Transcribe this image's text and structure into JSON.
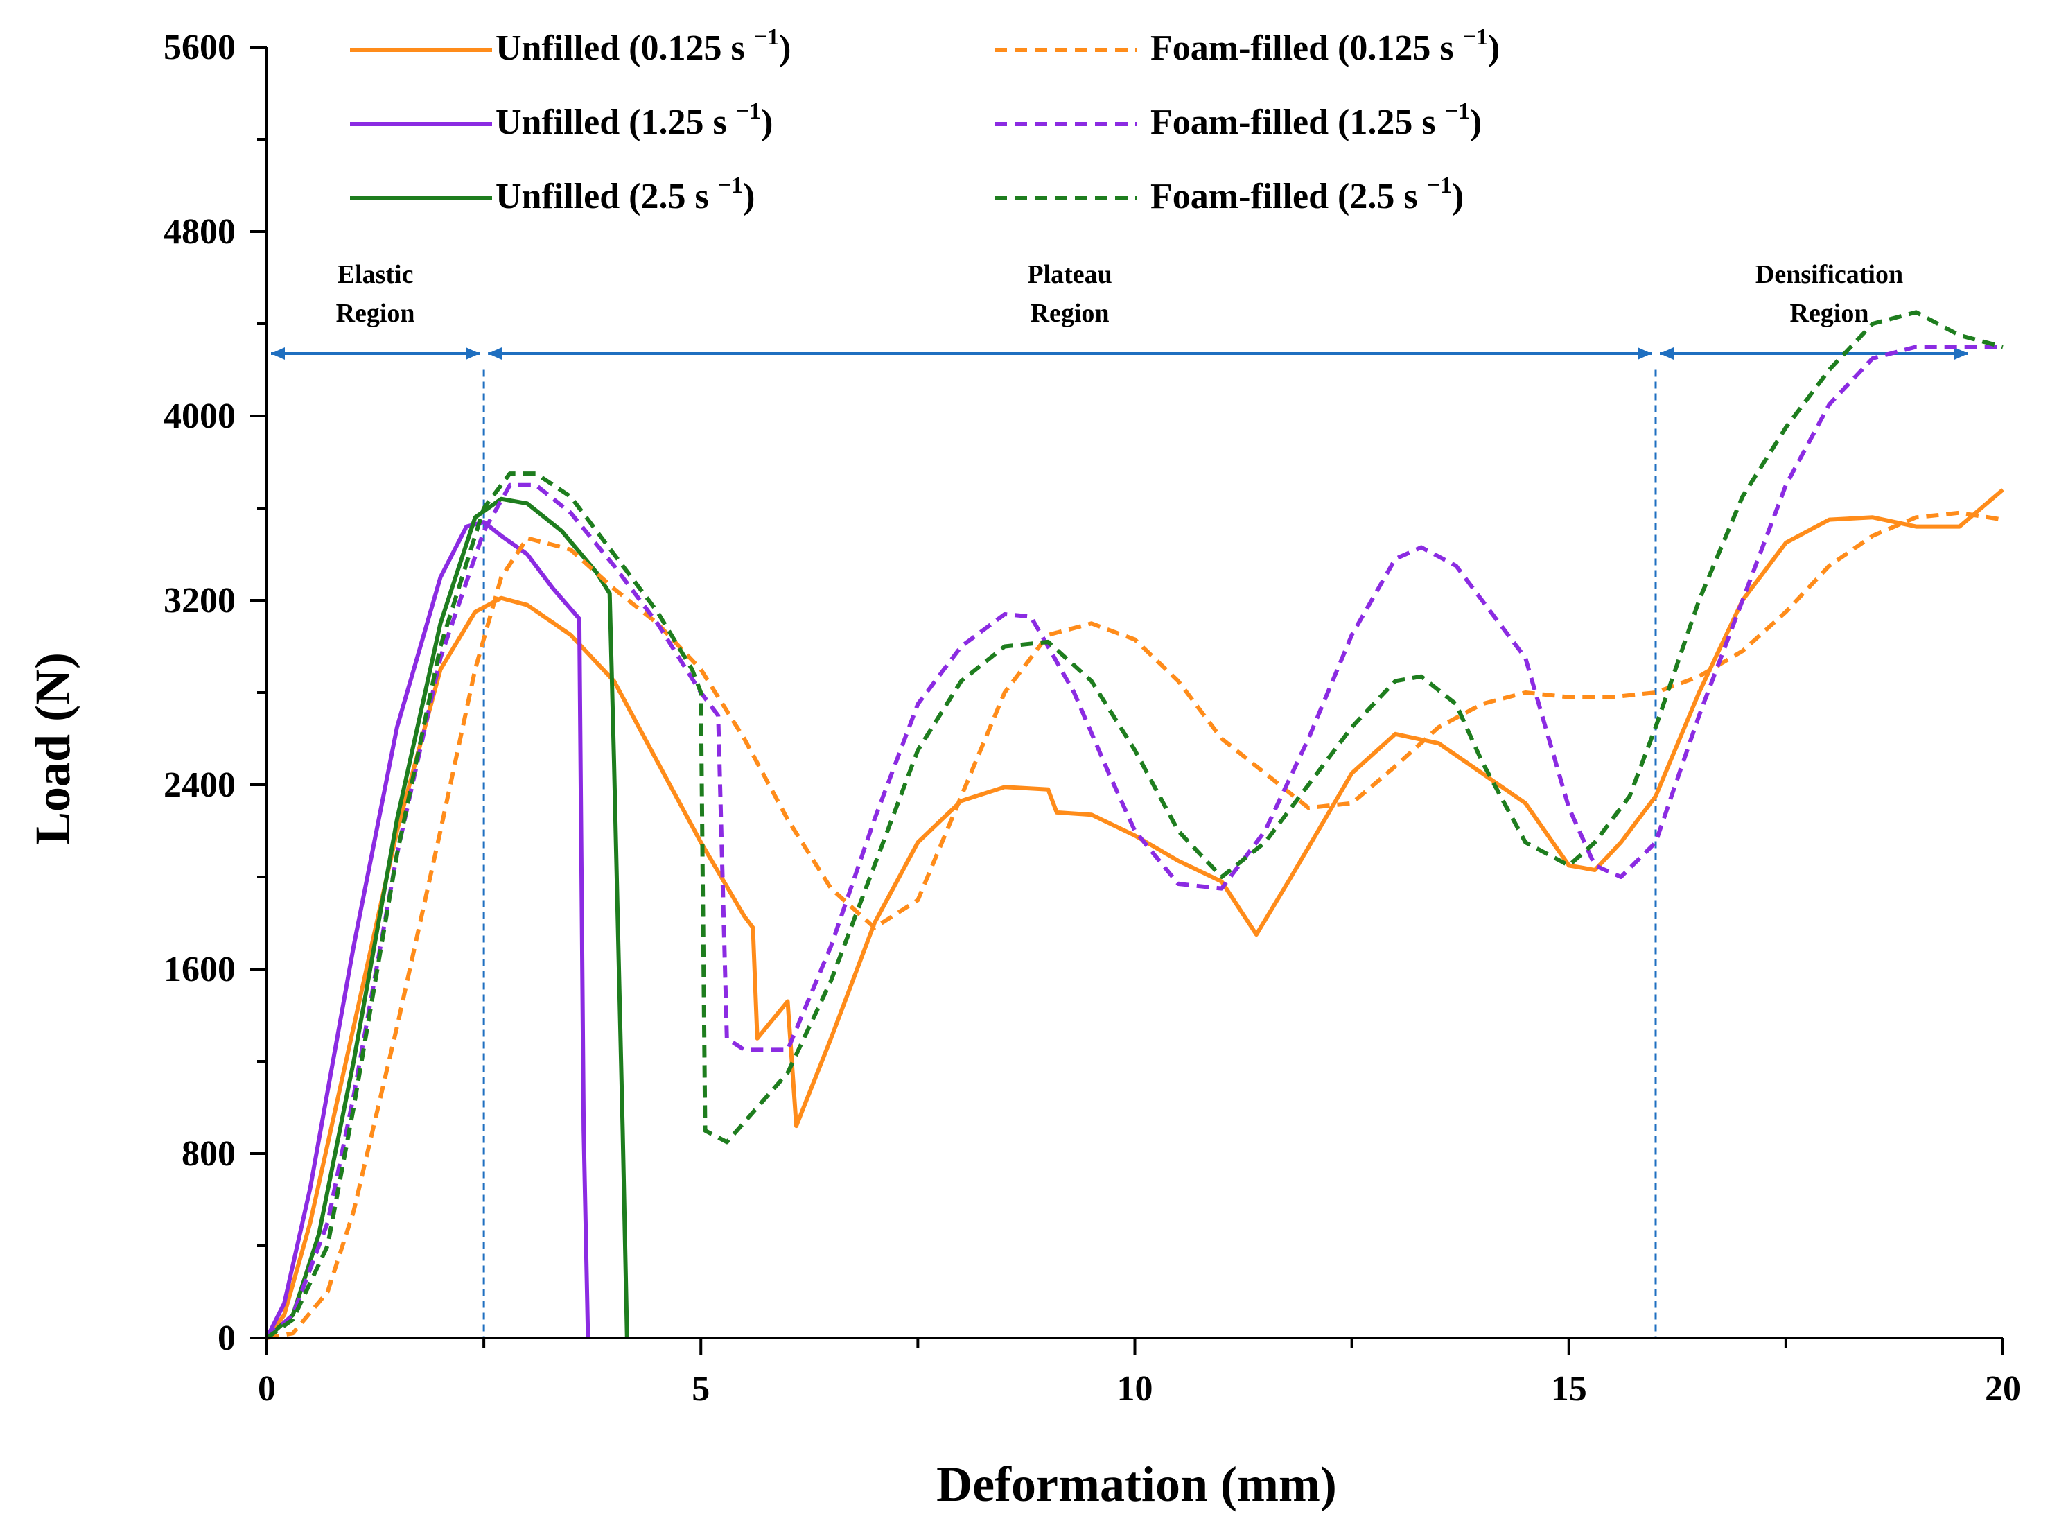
{
  "chart_data": {
    "type": "line",
    "title": "",
    "xlabel": "Deformation (mm)",
    "ylabel": "Load (N)",
    "xlim": [
      0,
      20
    ],
    "ylim": [
      0,
      5600
    ],
    "x_ticks": [
      0,
      5,
      10,
      15,
      20
    ],
    "y_ticks": [
      0,
      800,
      1600,
      2400,
      3200,
      4000,
      4800,
      5600
    ],
    "grid": false,
    "legend_position": "top",
    "colors": {
      "orange": "#ff8c1a",
      "purple": "#8b2be2",
      "green": "#1e7d1e",
      "annotation": "#1f6fc0"
    },
    "regions": [
      {
        "label_line1": "Elastic",
        "label_line2": "Region",
        "x_start": 0,
        "x_end": 2.5
      },
      {
        "label_line1": "Plateau",
        "label_line2": "Region",
        "x_start": 2.5,
        "x_end": 16.0
      },
      {
        "label_line1": "Densification",
        "label_line2": "Region",
        "x_start": 16.0,
        "x_end": 20
      }
    ],
    "region_divider_x": [
      2.5,
      16.0
    ],
    "series": [
      {
        "name": "Unfilled (0.125 s",
        "rate_sup": "−1",
        "legend_suffix": ")",
        "color": "#ff8c1a",
        "dashed": false,
        "points": [
          [
            0,
            0
          ],
          [
            0.2,
            100
          ],
          [
            0.5,
            500
          ],
          [
            1.0,
            1350
          ],
          [
            1.5,
            2200
          ],
          [
            2.0,
            2900
          ],
          [
            2.4,
            3150
          ],
          [
            2.7,
            3210
          ],
          [
            3.0,
            3180
          ],
          [
            3.5,
            3050
          ],
          [
            4.0,
            2850
          ],
          [
            4.5,
            2500
          ],
          [
            5.0,
            2150
          ],
          [
            5.5,
            1830
          ],
          [
            5.6,
            1780
          ],
          [
            5.65,
            1300
          ],
          [
            6.0,
            1460
          ],
          [
            6.1,
            920
          ],
          [
            6.5,
            1300
          ],
          [
            7.0,
            1800
          ],
          [
            7.5,
            2150
          ],
          [
            8.0,
            2330
          ],
          [
            8.5,
            2390
          ],
          [
            9.0,
            2380
          ],
          [
            9.1,
            2280
          ],
          [
            9.5,
            2270
          ],
          [
            10.0,
            2180
          ],
          [
            10.5,
            2070
          ],
          [
            11.0,
            1980
          ],
          [
            11.4,
            1750
          ],
          [
            11.8,
            2000
          ],
          [
            12.5,
            2450
          ],
          [
            13.0,
            2620
          ],
          [
            13.5,
            2580
          ],
          [
            14.0,
            2450
          ],
          [
            14.5,
            2320
          ],
          [
            15.0,
            2050
          ],
          [
            15.3,
            2030
          ],
          [
            15.6,
            2150
          ],
          [
            16.0,
            2350
          ],
          [
            16.5,
            2800
          ],
          [
            17.0,
            3200
          ],
          [
            17.5,
            3450
          ],
          [
            18.0,
            3550
          ],
          [
            18.5,
            3560
          ],
          [
            19.0,
            3520
          ],
          [
            19.5,
            3520
          ],
          [
            20.0,
            3680
          ]
        ]
      },
      {
        "name": "Unfilled (1.25 s",
        "rate_sup": "−1",
        "legend_suffix": ")",
        "color": "#8b2be2",
        "dashed": false,
        "points": [
          [
            0,
            0
          ],
          [
            0.2,
            150
          ],
          [
            0.5,
            650
          ],
          [
            1.0,
            1700
          ],
          [
            1.5,
            2650
          ],
          [
            2.0,
            3300
          ],
          [
            2.3,
            3520
          ],
          [
            2.5,
            3540
          ],
          [
            2.7,
            3480
          ],
          [
            3.0,
            3400
          ],
          [
            3.3,
            3250
          ],
          [
            3.6,
            3120
          ],
          [
            3.65,
            900
          ],
          [
            3.7,
            0
          ]
        ]
      },
      {
        "name": "Unfilled (2.5 s",
        "rate_sup": "−1",
        "legend_suffix": ")",
        "color": "#1e7d1e",
        "dashed": false,
        "points": [
          [
            0,
            0
          ],
          [
            0.3,
            100
          ],
          [
            0.6,
            450
          ],
          [
            1.0,
            1200
          ],
          [
            1.5,
            2250
          ],
          [
            2.0,
            3100
          ],
          [
            2.4,
            3560
          ],
          [
            2.7,
            3640
          ],
          [
            3.0,
            3620
          ],
          [
            3.4,
            3500
          ],
          [
            3.8,
            3320
          ],
          [
            3.95,
            3230
          ],
          [
            4.0,
            2500
          ],
          [
            4.1,
            900
          ],
          [
            4.15,
            0
          ]
        ]
      },
      {
        "name": "Foam-filled (0.125 s",
        "rate_sup": "−1",
        "legend_suffix": ")",
        "color": "#ff8c1a",
        "dashed": true,
        "points": [
          [
            0,
            0
          ],
          [
            0.3,
            20
          ],
          [
            0.7,
            200
          ],
          [
            1.0,
            550
          ],
          [
            1.5,
            1350
          ],
          [
            2.0,
            2200
          ],
          [
            2.4,
            2900
          ],
          [
            2.7,
            3300
          ],
          [
            3.0,
            3470
          ],
          [
            3.5,
            3420
          ],
          [
            4.0,
            3250
          ],
          [
            4.5,
            3100
          ],
          [
            5.0,
            2900
          ],
          [
            5.5,
            2600
          ],
          [
            6.0,
            2250
          ],
          [
            6.5,
            1950
          ],
          [
            7.0,
            1780
          ],
          [
            7.5,
            1900
          ],
          [
            8.0,
            2350
          ],
          [
            8.5,
            2800
          ],
          [
            9.0,
            3050
          ],
          [
            9.5,
            3100
          ],
          [
            10.0,
            3030
          ],
          [
            10.5,
            2850
          ],
          [
            11.0,
            2600
          ],
          [
            11.5,
            2450
          ],
          [
            12.0,
            2300
          ],
          [
            12.5,
            2320
          ],
          [
            13.0,
            2480
          ],
          [
            13.5,
            2650
          ],
          [
            14.0,
            2750
          ],
          [
            14.5,
            2800
          ],
          [
            15.0,
            2780
          ],
          [
            15.5,
            2780
          ],
          [
            16.0,
            2800
          ],
          [
            16.5,
            2870
          ],
          [
            17.0,
            2980
          ],
          [
            17.5,
            3150
          ],
          [
            18.0,
            3350
          ],
          [
            18.5,
            3480
          ],
          [
            19.0,
            3560
          ],
          [
            19.5,
            3580
          ],
          [
            20.0,
            3550
          ]
        ]
      },
      {
        "name": "Foam-filled (1.25 s",
        "rate_sup": "−1",
        "legend_suffix": ")",
        "color": "#8b2be2",
        "dashed": true,
        "points": [
          [
            0,
            0
          ],
          [
            0.3,
            100
          ],
          [
            0.7,
            500
          ],
          [
            1.0,
            1050
          ],
          [
            1.5,
            2100
          ],
          [
            2.0,
            2950
          ],
          [
            2.5,
            3500
          ],
          [
            2.8,
            3700
          ],
          [
            3.1,
            3700
          ],
          [
            3.5,
            3580
          ],
          [
            4.0,
            3350
          ],
          [
            4.5,
            3100
          ],
          [
            5.0,
            2800
          ],
          [
            5.2,
            2700
          ],
          [
            5.3,
            1300
          ],
          [
            5.5,
            1250
          ],
          [
            6.0,
            1250
          ],
          [
            6.5,
            1700
          ],
          [
            7.0,
            2250
          ],
          [
            7.5,
            2750
          ],
          [
            8.0,
            3000
          ],
          [
            8.5,
            3140
          ],
          [
            8.8,
            3130
          ],
          [
            9.0,
            3000
          ],
          [
            9.3,
            2800
          ],
          [
            9.7,
            2450
          ],
          [
            10.0,
            2200
          ],
          [
            10.5,
            1970
          ],
          [
            11.0,
            1950
          ],
          [
            11.5,
            2200
          ],
          [
            12.0,
            2600
          ],
          [
            12.5,
            3050
          ],
          [
            13.0,
            3380
          ],
          [
            13.3,
            3430
          ],
          [
            13.7,
            3350
          ],
          [
            14.0,
            3200
          ],
          [
            14.5,
            2950
          ],
          [
            15.0,
            2300
          ],
          [
            15.3,
            2050
          ],
          [
            15.6,
            2000
          ],
          [
            16.0,
            2150
          ],
          [
            16.5,
            2700
          ],
          [
            17.0,
            3200
          ],
          [
            17.5,
            3700
          ],
          [
            18.0,
            4050
          ],
          [
            18.5,
            4250
          ],
          [
            19.0,
            4300
          ],
          [
            19.5,
            4300
          ],
          [
            20.0,
            4300
          ]
        ]
      },
      {
        "name": "Foam-filled (2.5 s",
        "rate_sup": "−1",
        "legend_suffix": ")",
        "color": "#1e7d1e",
        "dashed": true,
        "points": [
          [
            0,
            0
          ],
          [
            0.3,
            80
          ],
          [
            0.7,
            400
          ],
          [
            1.0,
            1000
          ],
          [
            1.5,
            2100
          ],
          [
            2.0,
            3000
          ],
          [
            2.5,
            3600
          ],
          [
            2.8,
            3750
          ],
          [
            3.1,
            3750
          ],
          [
            3.5,
            3650
          ],
          [
            4.0,
            3400
          ],
          [
            4.5,
            3150
          ],
          [
            4.9,
            2900
          ],
          [
            5.0,
            2800
          ],
          [
            5.05,
            900
          ],
          [
            5.3,
            850
          ],
          [
            6.0,
            1150
          ],
          [
            6.5,
            1550
          ],
          [
            7.0,
            2050
          ],
          [
            7.5,
            2550
          ],
          [
            8.0,
            2850
          ],
          [
            8.5,
            3000
          ],
          [
            9.0,
            3020
          ],
          [
            9.5,
            2850
          ],
          [
            10.0,
            2550
          ],
          [
            10.5,
            2200
          ],
          [
            11.0,
            2000
          ],
          [
            11.5,
            2150
          ],
          [
            12.0,
            2400
          ],
          [
            12.5,
            2650
          ],
          [
            13.0,
            2850
          ],
          [
            13.3,
            2870
          ],
          [
            13.7,
            2750
          ],
          [
            14.0,
            2500
          ],
          [
            14.5,
            2150
          ],
          [
            15.0,
            2050
          ],
          [
            15.3,
            2150
          ],
          [
            15.7,
            2350
          ],
          [
            16.0,
            2650
          ],
          [
            16.5,
            3200
          ],
          [
            17.0,
            3650
          ],
          [
            17.5,
            3950
          ],
          [
            18.0,
            4200
          ],
          [
            18.5,
            4400
          ],
          [
            19.0,
            4450
          ],
          [
            19.5,
            4350
          ],
          [
            20.0,
            4300
          ]
        ]
      }
    ]
  }
}
